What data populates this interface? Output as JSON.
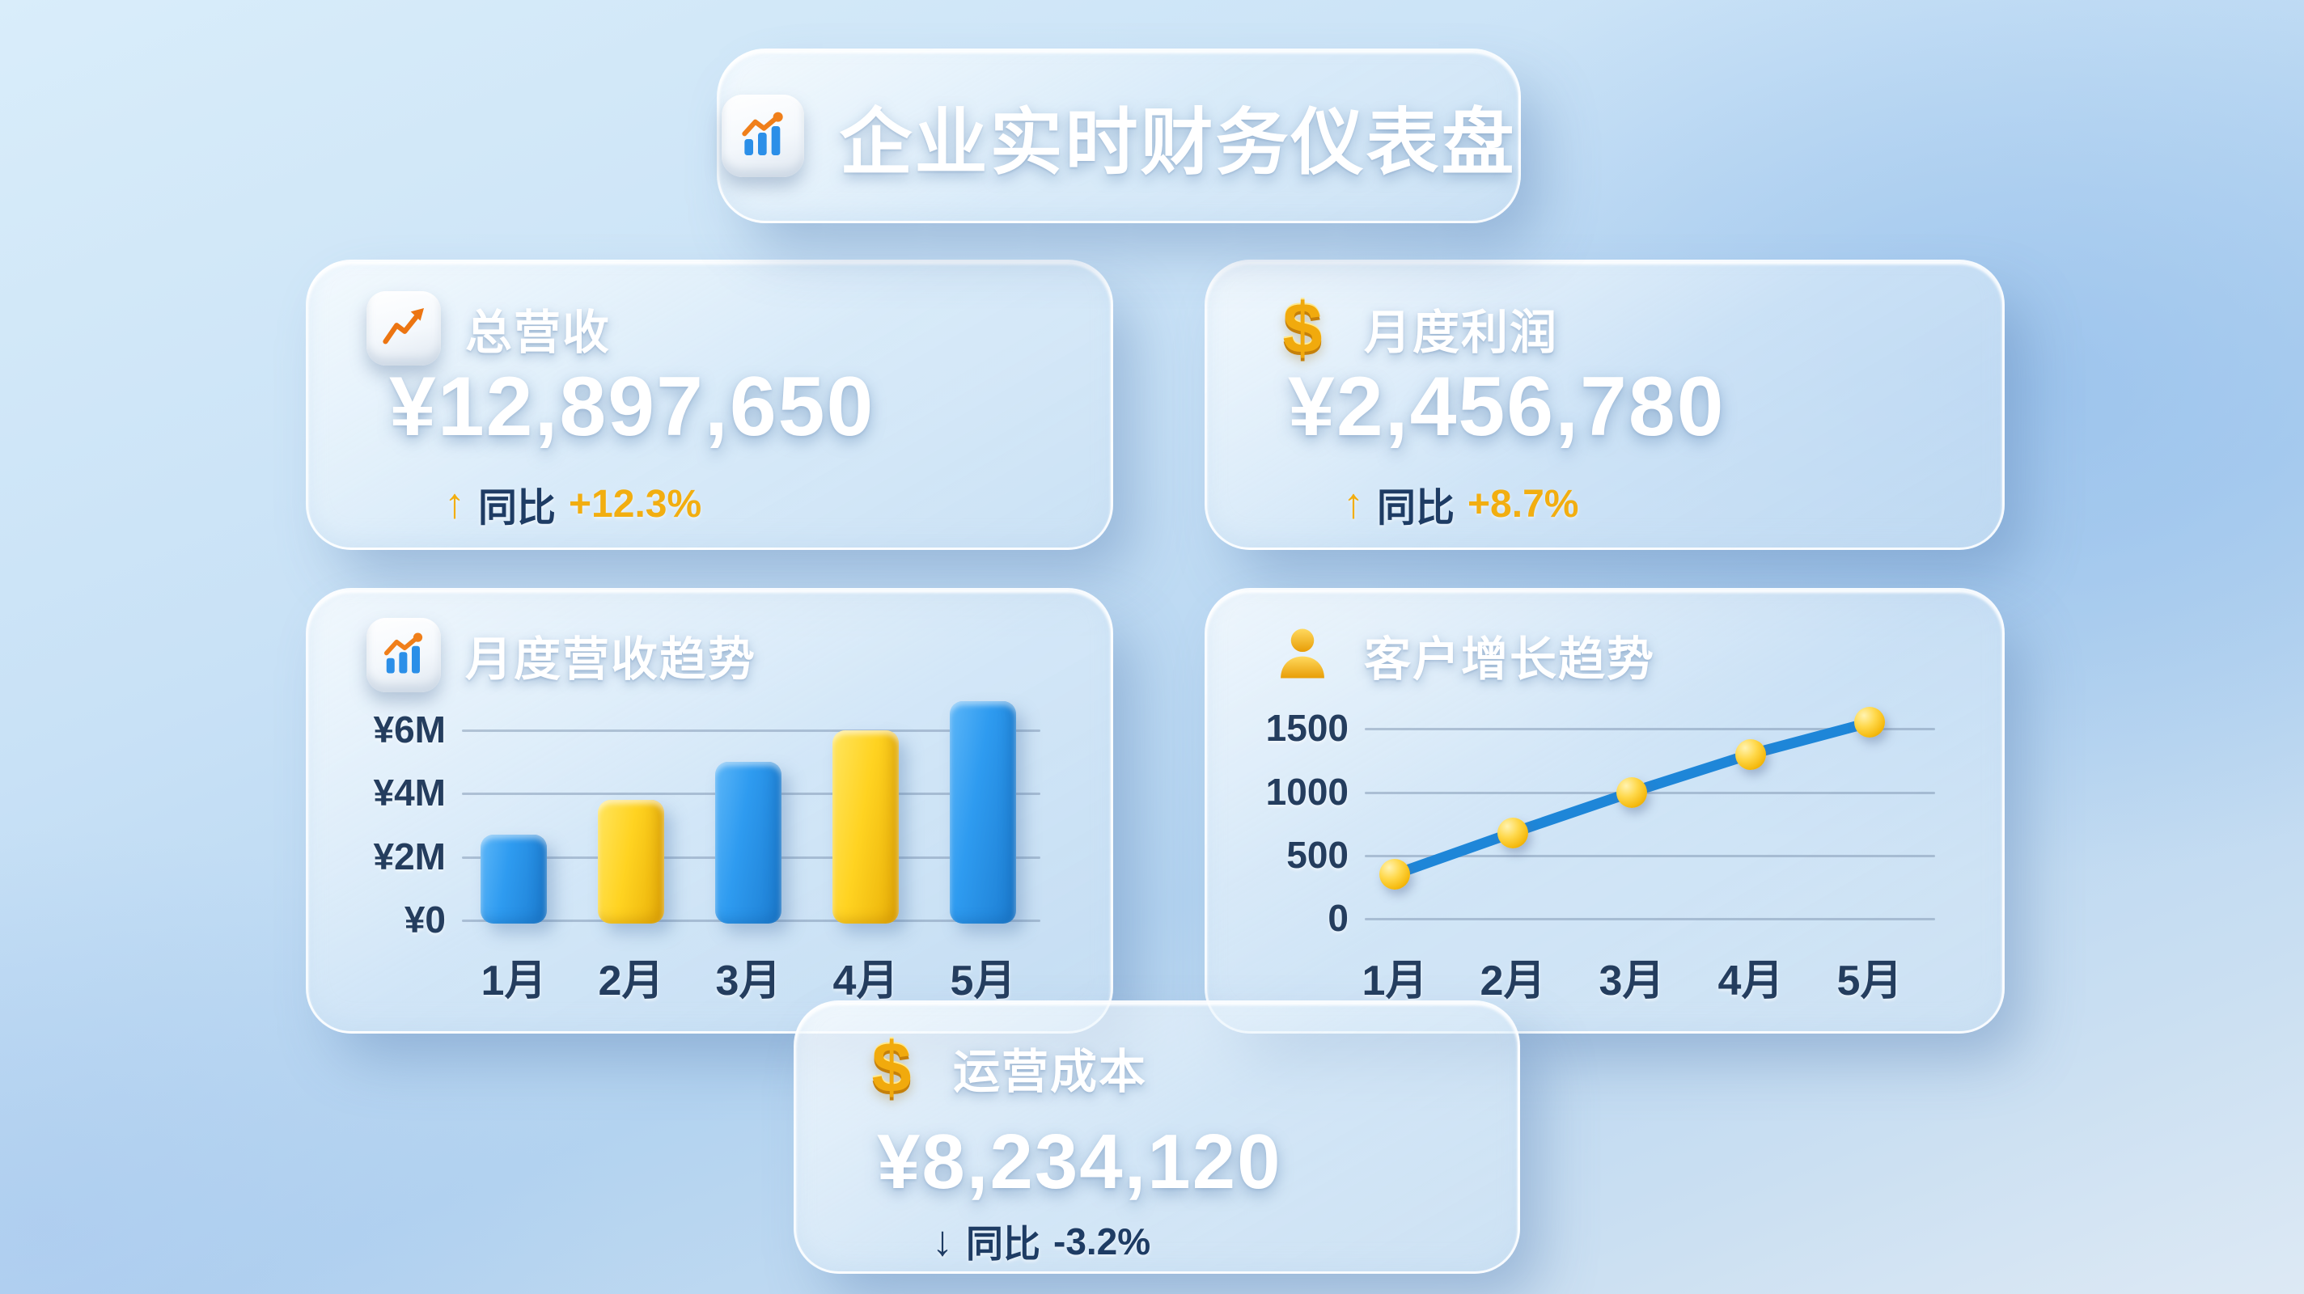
{
  "header": {
    "title": "企业实时财务仪表盘",
    "icon": "bar-chart-icon"
  },
  "cards": {
    "revenue": {
      "icon": "trend-up-icon",
      "title": "总营收",
      "value": "¥12,897,650",
      "arrow": "↑",
      "yoy_label": "同比",
      "yoy_value": "+12.3%",
      "direction": "up"
    },
    "profit": {
      "icon": "dollar-icon",
      "title": "月度利润",
      "value": "¥2,456,780",
      "arrow": "↑",
      "yoy_label": "同比",
      "yoy_value": "+8.7%",
      "direction": "up"
    },
    "cost": {
      "icon": "dollar-icon",
      "title": "运营成本",
      "value": "¥8,234,120",
      "arrow": "↓",
      "yoy_label": "同比",
      "yoy_value": "-3.2%",
      "direction": "down"
    }
  },
  "colors": {
    "bar_blue": "#2e9bf0",
    "bar_yellow": "#ffd321",
    "line_blue": "#1e86d8",
    "marker_gold": "#ffc518",
    "navy_text": "#1e3c64",
    "amber_text": "#f2ae10",
    "card_glass": "#e8f3fb",
    "background_blue": "#b3d3f0"
  },
  "chart_data": [
    {
      "type": "bar",
      "title": "月度营收趋势",
      "icon": "bar-chart-icon",
      "categories": [
        "1月",
        "2月",
        "3月",
        "4月",
        "5月"
      ],
      "values": [
        2.7,
        3.8,
        5.0,
        6.0,
        6.9
      ],
      "value_unit": "M",
      "bar_colors": [
        "blue",
        "yellow",
        "blue",
        "yellow",
        "blue"
      ],
      "ytick_values": [
        0,
        2,
        4,
        6
      ],
      "ytick_labels": [
        "¥0",
        "¥2M",
        "¥4M",
        "¥6M"
      ],
      "ylim": [
        0,
        7.2
      ],
      "xlabel": "",
      "ylabel": "",
      "grid": true,
      "legend": false
    },
    {
      "type": "line",
      "title": "客户增长趋势",
      "icon": "person-icon",
      "categories": [
        "1月",
        "2月",
        "3月",
        "4月",
        "5月"
      ],
      "values": [
        350,
        680,
        1000,
        1300,
        1550
      ],
      "line_color": "#1e86d8",
      "marker_color": "#ffc518",
      "ytick_values": [
        0,
        500,
        1000,
        1500
      ],
      "ytick_labels": [
        "0",
        "500",
        "1000",
        "1500"
      ],
      "ylim": [
        0,
        1700
      ],
      "xlabel": "",
      "ylabel": "",
      "grid": true,
      "legend": false
    }
  ]
}
